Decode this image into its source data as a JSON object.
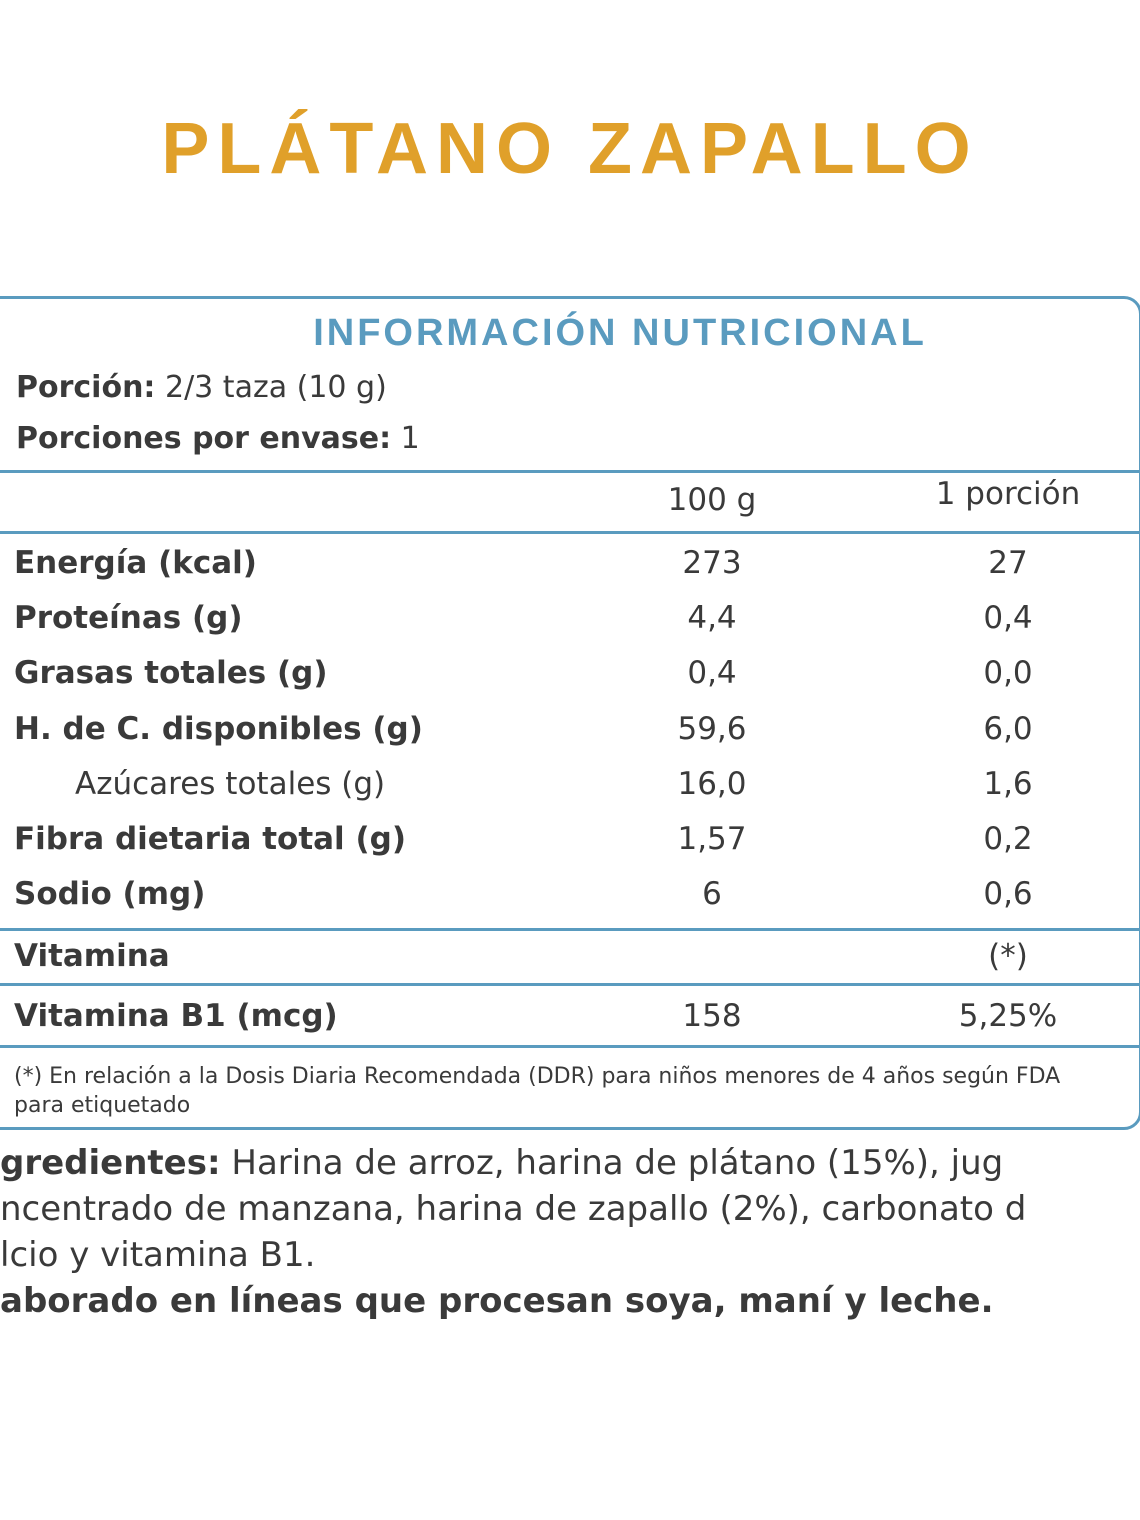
{
  "title": "PLÁTANO ZAPALLO",
  "panel": {
    "heading": "INFORMACIÓN NUTRICIONAL",
    "portion_label": "Porción:",
    "portion_value": "2/3 taza  (10 g)",
    "servings_label": "Porciones por envase:",
    "servings_value": "1",
    "col_headers": [
      "100 g",
      "1 porción"
    ],
    "rows": [
      {
        "label": "Energía (kcal)",
        "v100": "273",
        "vpor": "27"
      },
      {
        "label": "Proteínas (g)",
        "v100": "4,4",
        "vpor": "0,4"
      },
      {
        "label": "Grasas totales (g)",
        "v100": "0,4",
        "vpor": "0,0"
      },
      {
        "label": "H. de C. disponibles (g)",
        "v100": "59,6",
        "vpor": "6,0"
      },
      {
        "label": "Azúcares totales (g)",
        "v100": "16,0",
        "vpor": "1,6"
      },
      {
        "label": "Fibra dietaria total (g)",
        "v100": "1,57",
        "vpor": "0,2"
      },
      {
        "label": "Sodio (mg)",
        "v100": "6",
        "vpor": "0,6"
      }
    ],
    "vitamin_header": {
      "label": "Vitamina",
      "vpor": "(*)"
    },
    "vitamin_row": {
      "label": "Vitamina B1 (mcg)",
      "v100": "158",
      "vpor": "5,25%"
    },
    "footnote": "(*) En relación a la Dosis Diaria Recomendada (DDR) para niños menores de 4 años según FDA para etiquetado"
  },
  "ingredients": {
    "label": "gredientes:",
    "line1": "Harina  de  arroz,  harina  de  plátano  (15%),  jug",
    "line2": "ncentrado de manzana, harina de zapallo (2%), carbonato d",
    "line3": "lcio y vitamina B1.",
    "warning": "aborado en líneas que procesan soya, maní y leche."
  },
  "colors": {
    "accent_orange": "#E0A02A",
    "accent_blue": "#5A9BBF"
  }
}
